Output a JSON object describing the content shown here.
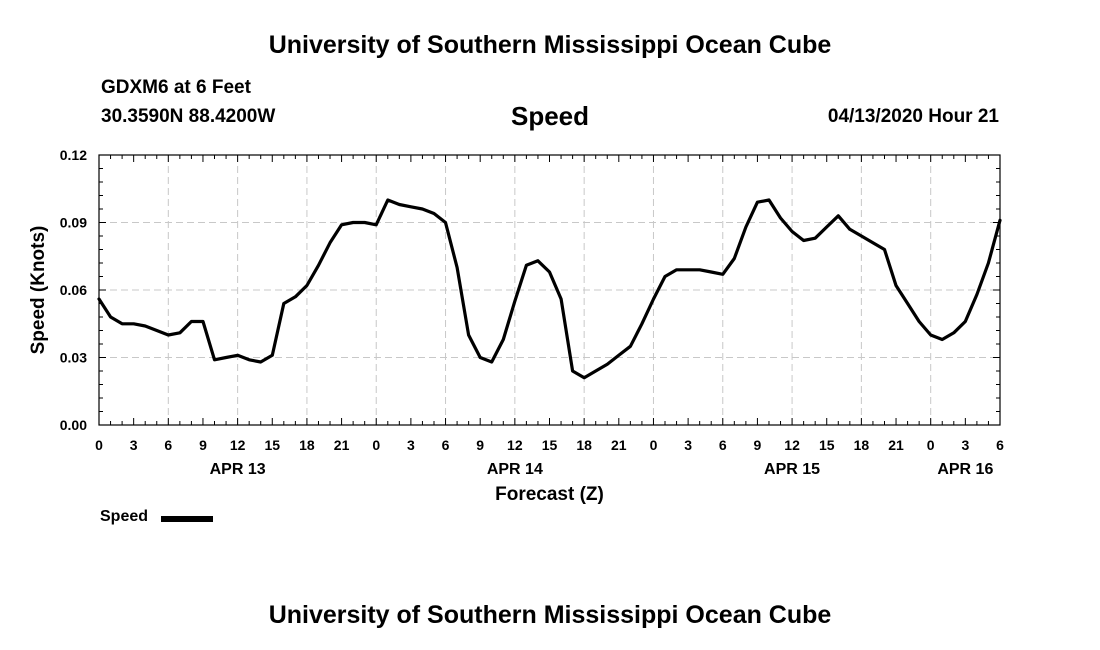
{
  "header": {
    "title": "University of Southern Mississippi Ocean Cube",
    "station": "GDXM6 at 6 Feet",
    "coords": "30.3590N 88.4200W",
    "plot_title": "Speed",
    "datetime": "04/13/2020 Hour 21"
  },
  "footer": {
    "title": "University of Southern Mississippi Ocean Cube"
  },
  "legend": {
    "label": "Speed"
  },
  "chart_data": {
    "type": "line",
    "title": "Speed",
    "xlabel": "Forecast (Z)",
    "ylabel": "Speed (Knots)",
    "ylim": [
      0,
      0.12
    ],
    "yticks": [
      "0.00",
      "0.03",
      "0.06",
      "0.09",
      "0.12"
    ],
    "x_unit": "hours since APR 13 00Z",
    "xlim": [
      0,
      78
    ],
    "xticks": [
      {
        "x": 0,
        "label": "0"
      },
      {
        "x": 3,
        "label": "3"
      },
      {
        "x": 6,
        "label": "6"
      },
      {
        "x": 9,
        "label": "9"
      },
      {
        "x": 12,
        "label": "12"
      },
      {
        "x": 15,
        "label": "15"
      },
      {
        "x": 18,
        "label": "18"
      },
      {
        "x": 21,
        "label": "21"
      },
      {
        "x": 24,
        "label": "0"
      },
      {
        "x": 27,
        "label": "3"
      },
      {
        "x": 30,
        "label": "6"
      },
      {
        "x": 33,
        "label": "9"
      },
      {
        "x": 36,
        "label": "12"
      },
      {
        "x": 39,
        "label": "15"
      },
      {
        "x": 42,
        "label": "18"
      },
      {
        "x": 45,
        "label": "21"
      },
      {
        "x": 48,
        "label": "0"
      },
      {
        "x": 51,
        "label": "3"
      },
      {
        "x": 54,
        "label": "6"
      },
      {
        "x": 57,
        "label": "9"
      },
      {
        "x": 60,
        "label": "12"
      },
      {
        "x": 63,
        "label": "15"
      },
      {
        "x": 66,
        "label": "18"
      },
      {
        "x": 69,
        "label": "21"
      },
      {
        "x": 72,
        "label": "0"
      },
      {
        "x": 75,
        "label": "3"
      },
      {
        "x": 78,
        "label": "6"
      }
    ],
    "date_labels": [
      {
        "x": 12,
        "label": "APR 13"
      },
      {
        "x": 36,
        "label": "APR 14"
      },
      {
        "x": 60,
        "label": "APR 15"
      },
      {
        "x": 75,
        "label": "APR 16"
      }
    ],
    "grid": true,
    "series": [
      {
        "name": "Speed",
        "color": "#000000",
        "x": [
          0,
          1,
          2,
          3,
          4,
          5,
          6,
          7,
          8,
          9,
          10,
          11,
          12,
          13,
          14,
          15,
          16,
          17,
          18,
          19,
          20,
          21,
          22,
          23,
          24,
          25,
          26,
          27,
          28,
          29,
          30,
          31,
          32,
          33,
          34,
          35,
          36,
          37,
          38,
          39,
          40,
          41,
          42,
          43,
          44,
          45,
          46,
          47,
          48,
          49,
          50,
          51,
          52,
          53,
          54,
          55,
          56,
          57,
          58,
          59,
          60,
          61,
          62,
          63,
          64,
          65,
          66,
          67,
          68,
          69,
          70,
          71,
          72,
          73,
          74,
          75,
          76,
          77,
          78
        ],
        "values": [
          0.056,
          0.048,
          0.045,
          0.045,
          0.044,
          0.042,
          0.04,
          0.041,
          0.046,
          0.046,
          0.029,
          0.03,
          0.031,
          0.029,
          0.028,
          0.031,
          0.054,
          0.057,
          0.062,
          0.071,
          0.081,
          0.089,
          0.09,
          0.09,
          0.089,
          0.1,
          0.098,
          0.097,
          0.096,
          0.094,
          0.09,
          0.07,
          0.04,
          0.03,
          0.028,
          0.038,
          0.055,
          0.071,
          0.073,
          0.068,
          0.056,
          0.024,
          0.021,
          0.024,
          0.027,
          0.031,
          0.035,
          0.045,
          0.056,
          0.066,
          0.069,
          0.069,
          0.069,
          0.068,
          0.067,
          0.074,
          0.088,
          0.099,
          0.1,
          0.092,
          0.086,
          0.082,
          0.083,
          0.088,
          0.093,
          0.087,
          0.084,
          0.081,
          0.078,
          0.062,
          0.054,
          0.046,
          0.04,
          0.038,
          0.041,
          0.046,
          0.058,
          0.072,
          0.091
        ]
      }
    ]
  }
}
